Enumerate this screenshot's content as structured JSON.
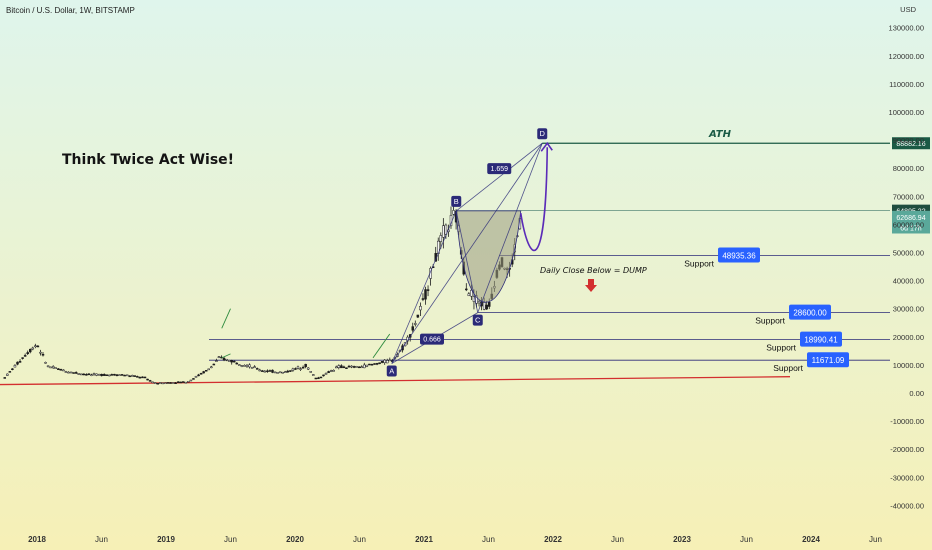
{
  "header": {
    "symbol": "Bitcoin / U.S. Dollar, 1W, BITSTAMP"
  },
  "axis": {
    "currency": "USD"
  },
  "note": {
    "title": "Think Twice Act Wise!"
  },
  "colors": {
    "bg_top": "#dff5ec",
    "bg_bottom": "#f6f0b6",
    "up": "#1c1c1c",
    "down": "#1c1c1c",
    "ath_line": "#1a5a45",
    "label_blue": "#2962ff",
    "pattern_navy": "#2b2a78",
    "trend_red": "#d32f2f",
    "pattern_fill": "#9a9a7e"
  },
  "chart_data": {
    "type": "line",
    "title": "Bitcoin / U.S. Dollar, 1W, BITSTAMP",
    "x_tick_labels": [
      "2018",
      "Jun",
      "2019",
      "Jun",
      "2020",
      "Jun",
      "2021",
      "Jun",
      "2022",
      "Jun",
      "2023",
      "Jun",
      "2024",
      "Jun"
    ],
    "y_tick_labels": [
      "130000.00",
      "120000.00",
      "110000.00",
      "100000.00",
      "90000.00",
      "80000.00",
      "70000.00",
      "60000.00",
      "50000.00",
      "40000.00",
      "30000.00",
      "20000.00",
      "10000.00",
      "0.00",
      "-10000.00",
      "-20000.00",
      "-30000.00",
      "-40000.00"
    ],
    "ylim": [
      -40000,
      135000
    ],
    "series": [
      {
        "values": [
          [
            "2017-10",
            5500
          ],
          [
            "2017-12",
            14000
          ],
          [
            "2018-01",
            17500
          ],
          [
            "2018-02",
            9500
          ],
          [
            "2018-04",
            7500
          ],
          [
            "2018-06",
            6500
          ],
          [
            "2018-09",
            6500
          ],
          [
            "2018-11",
            5500
          ],
          [
            "2018-12",
            3500
          ],
          [
            "2019-03",
            4000
          ],
          [
            "2019-05",
            8500
          ],
          [
            "2019-06",
            12500
          ],
          [
            "2019-08",
            10500
          ],
          [
            "2019-10",
            8000
          ],
          [
            "2019-12",
            7300
          ],
          [
            "2020-02",
            9800
          ],
          [
            "2020-03",
            5000
          ],
          [
            "2020-05",
            9300
          ],
          [
            "2020-07",
            9200
          ],
          [
            "2020-09",
            10800
          ],
          [
            "2020-10",
            11600
          ],
          [
            "2020-11",
            16000
          ],
          [
            "2020-12",
            23000
          ],
          [
            "2021-01",
            33000
          ],
          [
            "2021-02",
            48000
          ],
          [
            "2021-03",
            58000
          ],
          [
            "2021-04",
            63000
          ],
          [
            "2021-05",
            37000
          ],
          [
            "2021-06",
            33000
          ],
          [
            "2021-07",
            30000
          ],
          [
            "2021-08",
            47000
          ],
          [
            "2021-09",
            43000
          ],
          [
            "2021-10",
            62000
          ]
        ]
      }
    ],
    "price_labels": [
      {
        "label": "88882.16",
        "value": 88882.16
      },
      {
        "label": "64895.22",
        "value": 64895.22
      },
      {
        "label": "62686.94",
        "value": 62686.94
      },
      {
        "label": "6d 17h",
        "value": 58900
      },
      {
        "label": "48935.36",
        "value": 48935.36
      },
      {
        "label": "28600.00",
        "value": 28600
      },
      {
        "label": "18990.41",
        "value": 18990.41
      },
      {
        "label": "11671.09",
        "value": 11671.09
      }
    ],
    "support_labels": [
      "Support",
      "Support",
      "Support",
      "Support"
    ],
    "pattern_points": [
      {
        "label": "A",
        "date": "2020-10",
        "value": 10500
      },
      {
        "label": "B",
        "date": "2021-04",
        "value": 64800
      },
      {
        "label": "C",
        "date": "2021-06",
        "value": 28600
      },
      {
        "label": "D",
        "date": "2021-12",
        "value": 88882
      }
    ],
    "ratios": [
      {
        "label": "1.659"
      },
      {
        "label": "0.666"
      }
    ],
    "annotations": {
      "ath": "ATH",
      "dump": "Daily Close Below = DUMP"
    },
    "grid": false
  }
}
